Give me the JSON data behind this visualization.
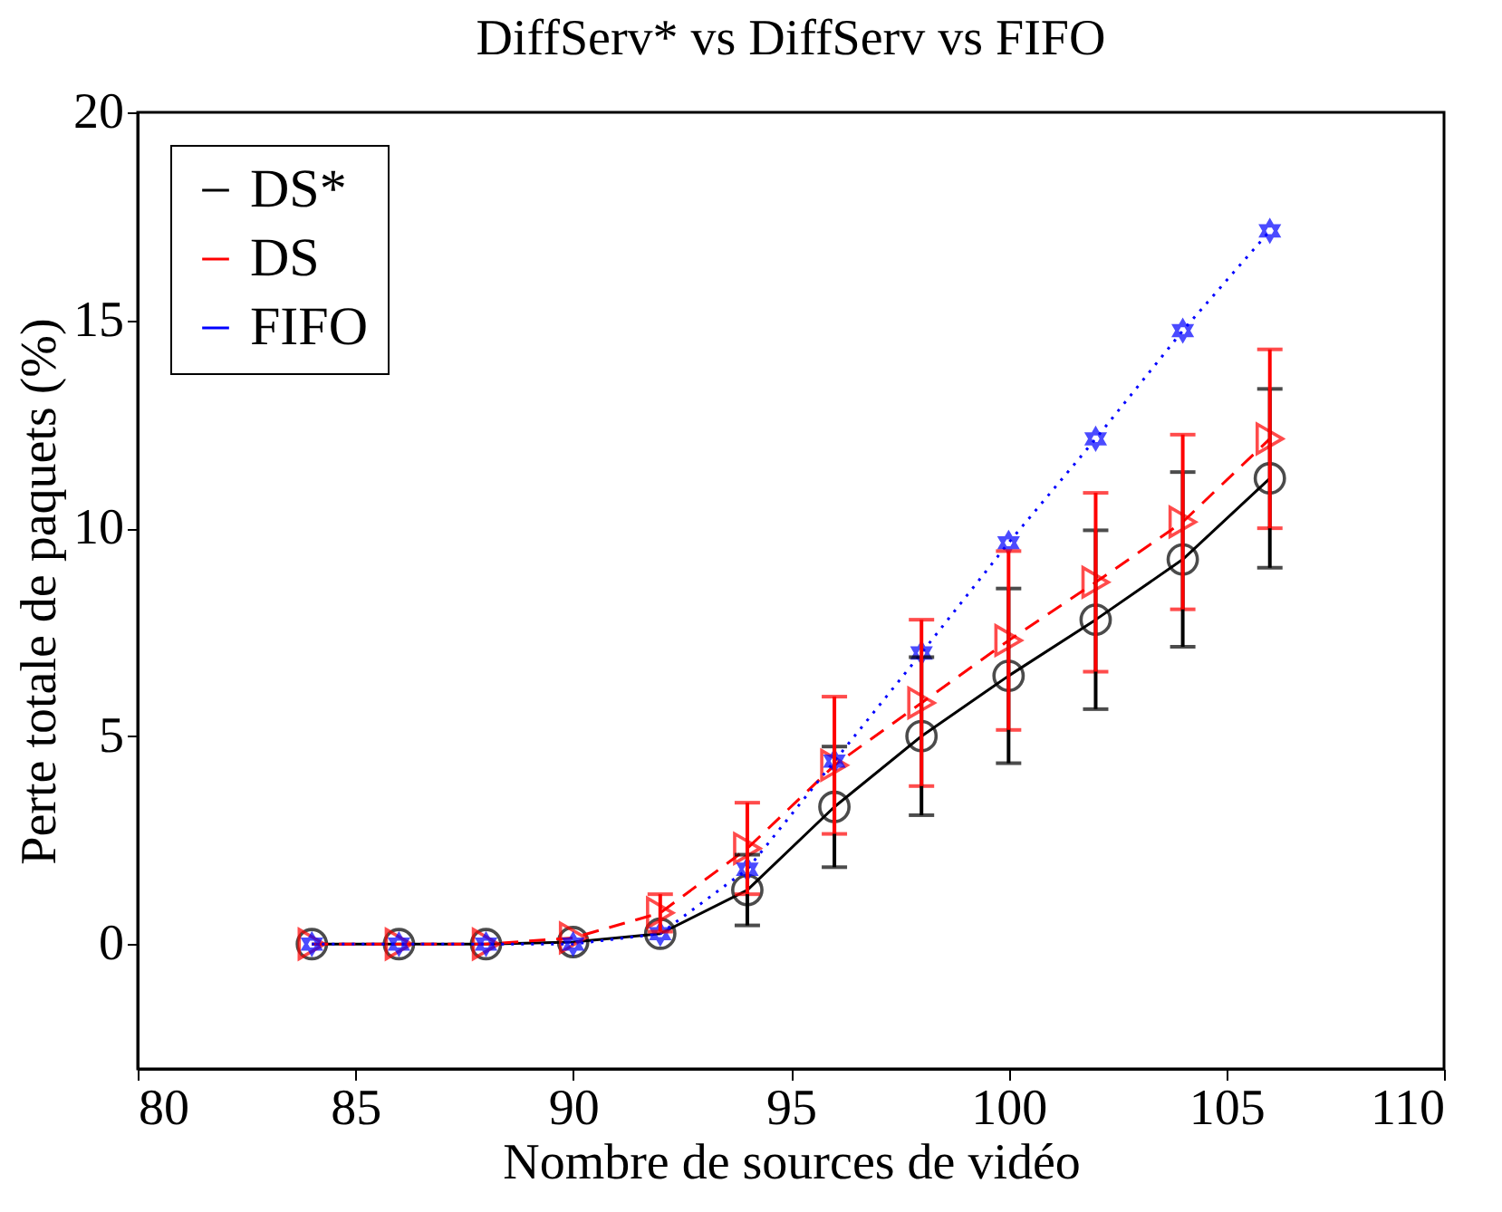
{
  "chart_data": {
    "type": "line",
    "title": "DiffServ* vs DiffServ vs FIFO",
    "xlabel": "Nombre de sources de vidéo",
    "ylabel": "Perte totale de paquets (%)",
    "x": [
      84,
      86,
      88,
      90,
      92,
      94,
      96,
      98,
      100,
      102,
      104,
      106
    ],
    "xlim": [
      80,
      110
    ],
    "xticks": [
      80,
      85,
      90,
      95,
      100,
      105,
      110
    ],
    "ylim": [
      -3,
      20
    ],
    "yticks": [
      0,
      5,
      10,
      15,
      20
    ],
    "grid": false,
    "legend": "top left",
    "series": [
      {
        "name": "DS*",
        "color": "#000000",
        "marker": "circle",
        "line_style": "solid",
        "values": [
          0,
          0,
          0,
          0.05,
          0.25,
          1.3,
          3.3,
          5.0,
          6.45,
          7.8,
          9.25,
          11.2
        ],
        "errors": [
          null,
          null,
          null,
          null,
          null,
          0.85,
          1.45,
          1.9,
          2.1,
          2.15,
          2.1,
          2.15
        ]
      },
      {
        "name": "DS",
        "color": "#ff0000",
        "marker": "triangle",
        "line_style": "dashed",
        "values": [
          0,
          0,
          0,
          0.15,
          0.75,
          2.3,
          4.3,
          5.8,
          7.3,
          8.7,
          10.15,
          12.15
        ],
        "errors": [
          null,
          null,
          null,
          null,
          0.45,
          1.1,
          1.65,
          2.0,
          2.15,
          2.15,
          2.1,
          2.15
        ]
      },
      {
        "name": "FIFO",
        "color": "#0000ff",
        "marker": "star",
        "line_style": "dotted",
        "values": [
          0,
          0,
          0,
          0,
          0.25,
          1.8,
          4.4,
          7.0,
          9.65,
          12.15,
          14.75,
          17.15
        ]
      }
    ]
  }
}
